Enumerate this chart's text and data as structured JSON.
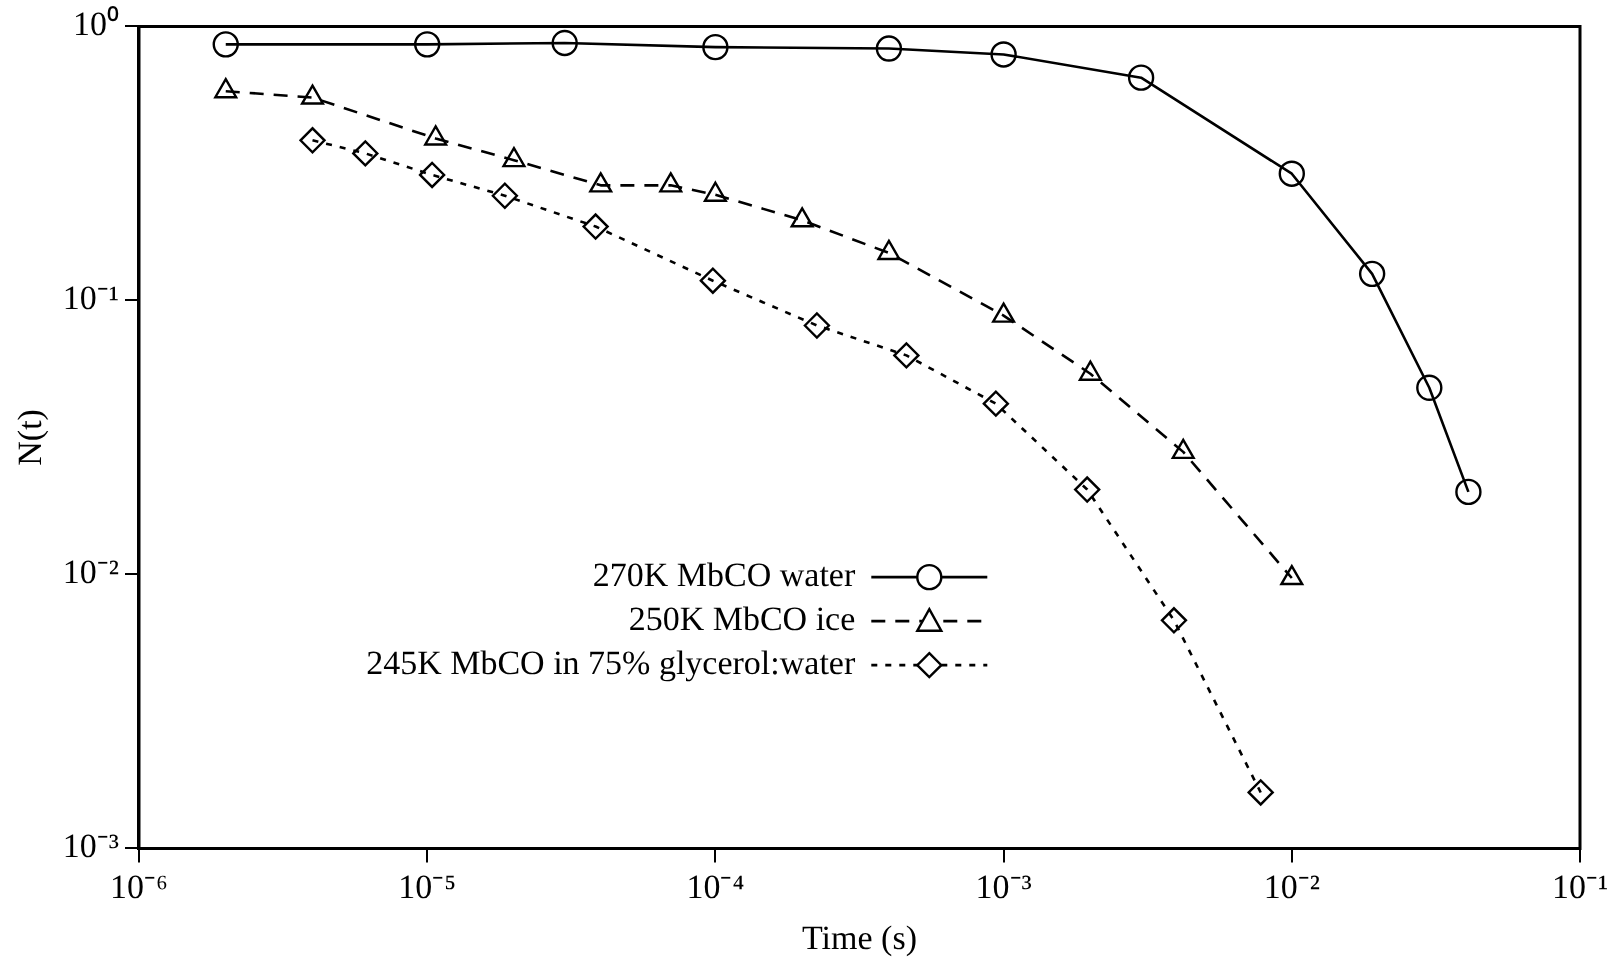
{
  "chart_data": {
    "type": "line",
    "xlabel": "Time (s)",
    "ylabel": "N(t)",
    "log": "xy",
    "grid": false,
    "legend": "bottom",
    "xlim": [
      1e-06,
      0.1
    ],
    "ylim": [
      0.001,
      1
    ],
    "xticks": [
      {
        "value": 1e-06,
        "label": "10⁻⁶"
      },
      {
        "value": 1e-05,
        "label": "10⁻⁵"
      },
      {
        "value": 0.0001,
        "label": "10⁻⁴"
      },
      {
        "value": 0.001,
        "label": "10⁻³"
      },
      {
        "value": 0.01,
        "label": "10⁻²"
      },
      {
        "value": 0.1,
        "label": "10⁻¹"
      }
    ],
    "yticks": [
      {
        "value": 0.001,
        "label": "10⁻³"
      },
      {
        "value": 0.01,
        "label": "10⁻²"
      },
      {
        "value": 0.1,
        "label": "10⁻¹"
      },
      {
        "value": 1,
        "label": "10⁰"
      }
    ],
    "series": [
      {
        "name": "270K MbCO water",
        "color": "#000000",
        "marker": "circle",
        "line_style": "solid",
        "x": [
          2e-06,
          1e-05,
          3e-05,
          0.0001,
          0.0004,
          0.001,
          0.003,
          0.01,
          0.019,
          0.03,
          0.041
        ],
        "values": [
          0.86,
          0.86,
          0.87,
          0.84,
          0.83,
          0.79,
          0.65,
          0.29,
          0.125,
          0.048,
          0.02
        ]
      },
      {
        "name": "250K MbCO ice",
        "color": "#000000",
        "marker": "triangle",
        "line_style": "dashed",
        "x": [
          2e-06,
          4e-06,
          1.07e-05,
          2e-05,
          4e-05,
          7e-05,
          0.0001,
          0.0002,
          0.0004,
          0.001,
          0.002,
          0.0042,
          0.01
        ],
        "values": [
          0.58,
          0.55,
          0.39,
          0.325,
          0.263,
          0.263,
          0.243,
          0.196,
          0.149,
          0.088,
          0.054,
          0.028,
          0.0097
        ]
      },
      {
        "name": "245K MbCO in 75% glycerol:water",
        "color": "#000000",
        "marker": "diamond",
        "line_style": "dotted",
        "x": [
          4e-06,
          6.1e-06,
          1.04e-05,
          1.86e-05,
          3.84e-05,
          9.8e-05,
          0.000225,
          0.00046,
          0.00094,
          0.00195,
          0.0039,
          0.0078
        ],
        "values": [
          0.384,
          0.344,
          0.287,
          0.241,
          0.186,
          0.118,
          0.081,
          0.063,
          0.042,
          0.0204,
          0.0068,
          0.0016
        ]
      }
    ]
  }
}
